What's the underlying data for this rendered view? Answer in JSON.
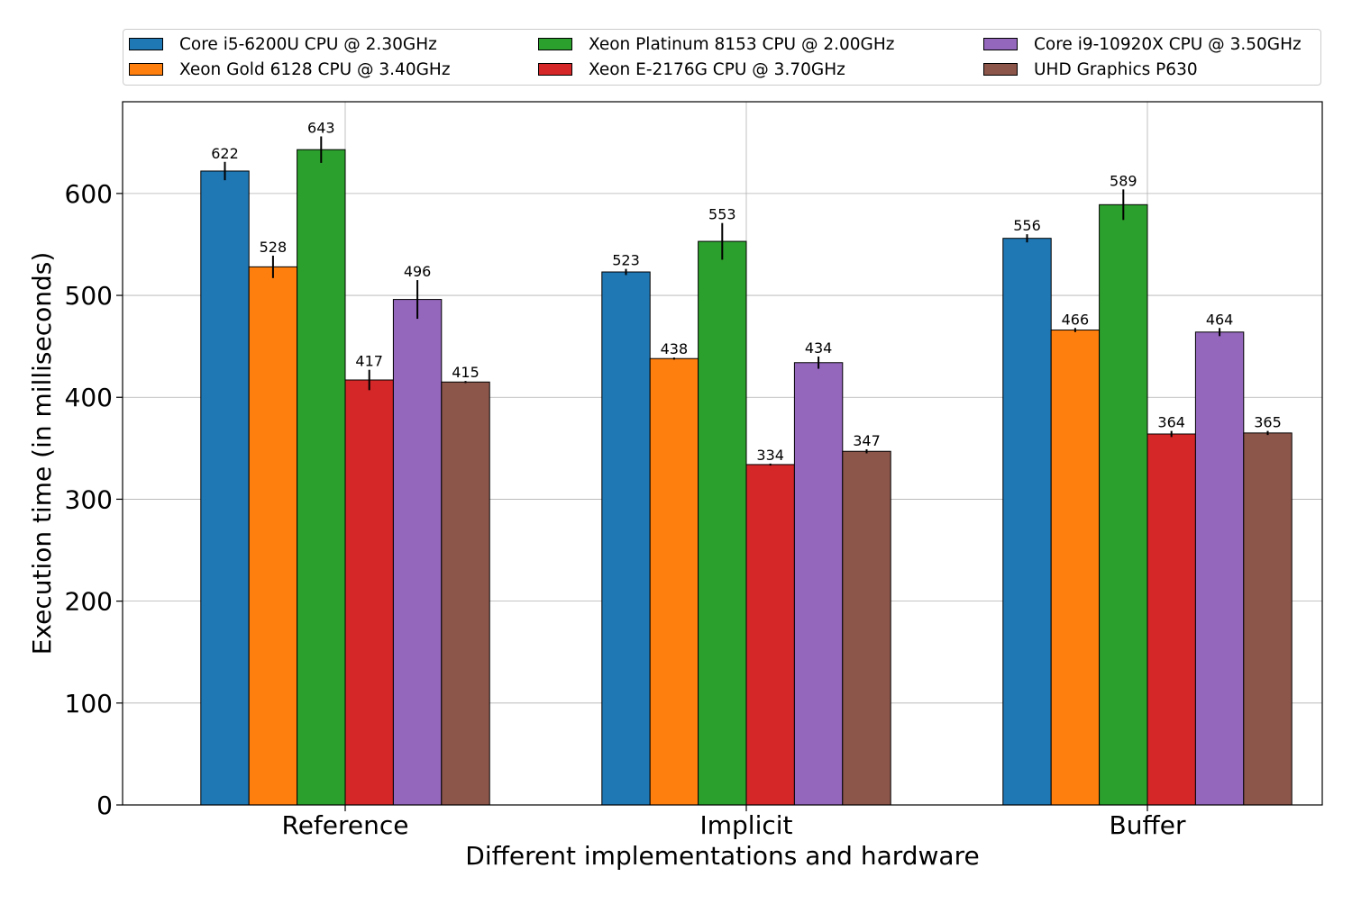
{
  "chart_data": {
    "type": "bar",
    "title": "",
    "xlabel": "Different implementations and hardware",
    "ylabel": "Execution time (in milliseconds)",
    "ylim": [
      0,
      690
    ],
    "yticks": [
      0,
      100,
      200,
      300,
      400,
      500,
      600
    ],
    "grid": true,
    "legend_position": "top",
    "categories": [
      "Reference",
      "Implicit",
      "Buffer"
    ],
    "series": [
      {
        "name": "Core i5-6200U CPU @ 2.30GHz",
        "color": "#1f77b4",
        "values": [
          622,
          523,
          556
        ],
        "errors": [
          9,
          3,
          4
        ]
      },
      {
        "name": "Xeon Gold 6128 CPU @ 3.40GHz",
        "color": "#ff7f0e",
        "values": [
          528,
          438,
          466
        ],
        "errors": [
          11,
          1,
          2
        ]
      },
      {
        "name": "Xeon Platinum 8153 CPU @ 2.00GHz",
        "color": "#2ca02c",
        "values": [
          643,
          553,
          589
        ],
        "errors": [
          13,
          18,
          15
        ]
      },
      {
        "name": "Xeon E-2176G CPU @ 3.70GHz",
        "color": "#d62728",
        "values": [
          417,
          334,
          364
        ],
        "errors": [
          10,
          1,
          3
        ]
      },
      {
        "name": "Core i9-10920X CPU @ 3.50GHz",
        "color": "#9467bd",
        "values": [
          496,
          434,
          464
        ],
        "errors": [
          19,
          6,
          4
        ]
      },
      {
        "name": "UHD Graphics P630",
        "color": "#8c564b",
        "values": [
          415,
          347,
          365
        ],
        "errors": [
          1,
          2,
          2
        ]
      }
    ]
  }
}
